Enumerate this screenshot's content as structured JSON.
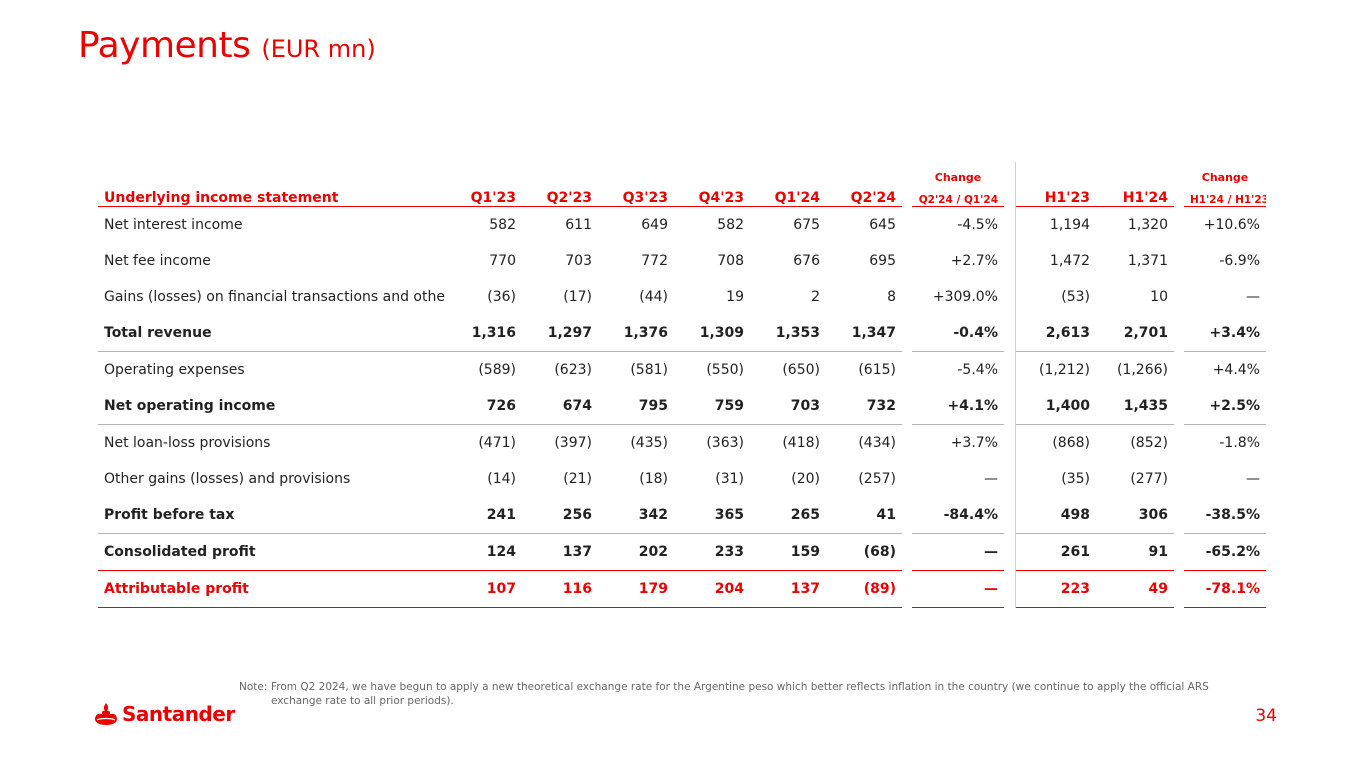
{
  "slide": {
    "title": "Payments",
    "title_suffix": "(EUR mn)",
    "page_number": "34",
    "brand": "Santander",
    "note_prefix": "Note:",
    "note_text": "From Q2 2024, we have begun to apply a new theoretical exchange rate for the Argentine peso which better reflects inflation in the country (we continue to apply the official ARS exchange rate to all prior periods)."
  },
  "table": {
    "change_label": "Change",
    "change_label_2": "Change",
    "headers": {
      "label": "Underlying income statement",
      "q1_23": "Q1'23",
      "q2_23": "Q2'23",
      "q3_23": "Q3'23",
      "q4_23": "Q4'23",
      "q1_24": "Q1'24",
      "q2_24": "Q2'24",
      "chg_q": "Q2'24 / Q1'24",
      "h1_23": "H1'23",
      "h1_24": "H1'24",
      "chg_h": "H1'24 / H1'23"
    },
    "rows": [
      {
        "label": "Net interest income",
        "q1_23": "582",
        "q2_23": "611",
        "q3_23": "649",
        "q4_23": "582",
        "q1_24": "675",
        "q2_24": "645",
        "chg_q": "-4.5%",
        "h1_23": "1,194",
        "h1_24": "1,320",
        "chg_h": "+10.6%"
      },
      {
        "label": "Net fee income",
        "q1_23": "770",
        "q2_23": "703",
        "q3_23": "772",
        "q4_23": "708",
        "q1_24": "676",
        "q2_24": "695",
        "chg_q": "+2.7%",
        "h1_23": "1,472",
        "h1_24": "1,371",
        "chg_h": "-6.9%"
      },
      {
        "label": "Gains (losses) on financial transactions and other",
        "q1_23": "(36)",
        "q2_23": "(17)",
        "q3_23": "(44)",
        "q4_23": "19",
        "q1_24": "2",
        "q2_24": "8",
        "chg_q": "+309.0%",
        "h1_23": "(53)",
        "h1_24": "10",
        "chg_h": "—"
      },
      {
        "label": "Total revenue",
        "q1_23": "1,316",
        "q2_23": "1,297",
        "q3_23": "1,376",
        "q4_23": "1,309",
        "q1_24": "1,353",
        "q2_24": "1,347",
        "chg_q": "-0.4%",
        "h1_23": "2,613",
        "h1_24": "2,701",
        "chg_h": "+3.4%"
      },
      {
        "label": "Operating expenses",
        "q1_23": "(589)",
        "q2_23": "(623)",
        "q3_23": "(581)",
        "q4_23": "(550)",
        "q1_24": "(650)",
        "q2_24": "(615)",
        "chg_q": "-5.4%",
        "h1_23": "(1,212)",
        "h1_24": "(1,266)",
        "chg_h": "+4.4%"
      },
      {
        "label": "Net operating income",
        "q1_23": "726",
        "q2_23": "674",
        "q3_23": "795",
        "q4_23": "759",
        "q1_24": "703",
        "q2_24": "732",
        "chg_q": "+4.1%",
        "h1_23": "1,400",
        "h1_24": "1,435",
        "chg_h": "+2.5%"
      },
      {
        "label": "Net loan-loss provisions",
        "q1_23": "(471)",
        "q2_23": "(397)",
        "q3_23": "(435)",
        "q4_23": "(363)",
        "q1_24": "(418)",
        "q2_24": "(434)",
        "chg_q": "+3.7%",
        "h1_23": "(868)",
        "h1_24": "(852)",
        "chg_h": "-1.8%"
      },
      {
        "label": "Other gains (losses) and provisions",
        "q1_23": "(14)",
        "q2_23": "(21)",
        "q3_23": "(18)",
        "q4_23": "(31)",
        "q1_24": "(20)",
        "q2_24": "(257)",
        "chg_q": "—",
        "h1_23": "(35)",
        "h1_24": "(277)",
        "chg_h": "—"
      },
      {
        "label": "Profit before tax",
        "q1_23": "241",
        "q2_23": "256",
        "q3_23": "342",
        "q4_23": "365",
        "q1_24": "265",
        "q2_24": "41",
        "chg_q": "-84.4%",
        "h1_23": "498",
        "h1_24": "306",
        "chg_h": "-38.5%"
      },
      {
        "label": "Consolidated profit",
        "q1_23": "124",
        "q2_23": "137",
        "q3_23": "202",
        "q4_23": "233",
        "q1_24": "159",
        "q2_24": "(68)",
        "chg_q": "—",
        "h1_23": "261",
        "h1_24": "91",
        "chg_h": "-65.2%"
      },
      {
        "label": "Attributable profit",
        "q1_23": "107",
        "q2_23": "116",
        "q3_23": "179",
        "q4_23": "204",
        "q1_24": "137",
        "q2_24": "(89)",
        "chg_q": "—",
        "h1_23": "223",
        "h1_24": "49",
        "chg_h": "-78.1%"
      }
    ]
  },
  "colors": {
    "brand_red": "#ec0000",
    "text": "#222222",
    "rule_gray": "#b5b5b5",
    "note_gray": "#666666"
  },
  "icons": {
    "logo": "santander-flame-icon"
  }
}
